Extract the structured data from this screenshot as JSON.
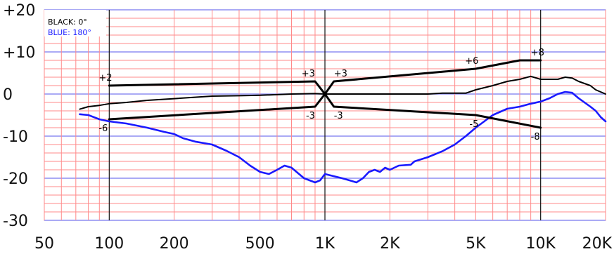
{
  "chart_data": {
    "type": "line",
    "x_scale": "log",
    "xlim": [
      50,
      20000
    ],
    "ylim": [
      -30,
      20
    ],
    "y_ticks": [
      "+20",
      "+10",
      "0",
      "-10",
      "-20",
      "-30"
    ],
    "x_ticks": [
      {
        "label": "50",
        "value": 50
      },
      {
        "label": "100",
        "value": 100
      },
      {
        "label": "200",
        "value": 200
      },
      {
        "label": "500",
        "value": 500
      },
      {
        "label": "1K",
        "value": 1000
      },
      {
        "label": "2K",
        "value": 2000
      },
      {
        "label": "5K",
        "value": 5000
      },
      {
        "label": "10K",
        "value": 10000
      },
      {
        "label": "20K",
        "value": 20000
      }
    ],
    "grid": true,
    "legend": {
      "position": "top-left",
      "entries": [
        {
          "label": "BLACK",
          "value": "0°",
          "color": "#000000"
        },
        {
          "label": "BLUE",
          "value": "180°",
          "color": "#1a1aff"
        }
      ]
    },
    "series": [
      {
        "name": "BLACK",
        "color": "#000000",
        "points": [
          [
            73,
            -3.6
          ],
          [
            80,
            -3
          ],
          [
            90,
            -2.7
          ],
          [
            100,
            -2.3
          ],
          [
            120,
            -2
          ],
          [
            150,
            -1.5
          ],
          [
            200,
            -1.1
          ],
          [
            300,
            -0.5
          ],
          [
            400,
            -0.4
          ],
          [
            500,
            -0.3
          ],
          [
            700,
            0
          ],
          [
            900,
            0.1
          ],
          [
            1000,
            0
          ],
          [
            1200,
            0
          ],
          [
            2000,
            0
          ],
          [
            3000,
            0
          ],
          [
            3500,
            0.2
          ],
          [
            4500,
            0.2
          ],
          [
            5000,
            1
          ],
          [
            6000,
            2
          ],
          [
            7000,
            3
          ],
          [
            8000,
            3.5
          ],
          [
            9000,
            4.2
          ],
          [
            10000,
            3.5
          ],
          [
            12000,
            3.5
          ],
          [
            13000,
            4
          ],
          [
            14000,
            3.8
          ],
          [
            15000,
            3
          ],
          [
            17000,
            2
          ],
          [
            18000,
            1
          ],
          [
            20000,
            0
          ]
        ]
      },
      {
        "name": "BLUE",
        "color": "#1a1aff",
        "points": [
          [
            73,
            -4.8
          ],
          [
            80,
            -5
          ],
          [
            90,
            -6
          ],
          [
            100,
            -6.5
          ],
          [
            120,
            -7
          ],
          [
            150,
            -8
          ],
          [
            180,
            -9
          ],
          [
            200,
            -9.5
          ],
          [
            220,
            -10.5
          ],
          [
            250,
            -11.3
          ],
          [
            300,
            -12
          ],
          [
            350,
            -13.5
          ],
          [
            400,
            -15
          ],
          [
            450,
            -17
          ],
          [
            500,
            -18.5
          ],
          [
            550,
            -19
          ],
          [
            600,
            -18
          ],
          [
            650,
            -17
          ],
          [
            700,
            -17.5
          ],
          [
            800,
            -20
          ],
          [
            900,
            -21
          ],
          [
            950,
            -20.5
          ],
          [
            1000,
            -19
          ],
          [
            1200,
            -20
          ],
          [
            1300,
            -20.5
          ],
          [
            1400,
            -21
          ],
          [
            1500,
            -20
          ],
          [
            1600,
            -18.5
          ],
          [
            1700,
            -18
          ],
          [
            1800,
            -18.5
          ],
          [
            1900,
            -17.5
          ],
          [
            2000,
            -18
          ],
          [
            2200,
            -17
          ],
          [
            2500,
            -16.8
          ],
          [
            2600,
            -16
          ],
          [
            3000,
            -15
          ],
          [
            3500,
            -13.6
          ],
          [
            4000,
            -12
          ],
          [
            4500,
            -10
          ],
          [
            5000,
            -8
          ],
          [
            6000,
            -5
          ],
          [
            7000,
            -3.5
          ],
          [
            8000,
            -3
          ],
          [
            9000,
            -2.3
          ],
          [
            10000,
            -1.8
          ],
          [
            11000,
            -1
          ],
          [
            12000,
            0
          ],
          [
            13000,
            0.5
          ],
          [
            14000,
            0.3
          ],
          [
            15000,
            -1
          ],
          [
            17000,
            -3
          ],
          [
            18000,
            -4
          ],
          [
            19000,
            -5.5
          ],
          [
            20000,
            -6.5
          ]
        ]
      },
      {
        "name": "",
        "color": "#000000",
        "points": [
          [
            100,
            2
          ],
          [
            900,
            3
          ],
          [
            1000,
            0
          ],
          [
            1100,
            3
          ],
          [
            5000,
            6
          ],
          [
            8000,
            8
          ],
          [
            10000,
            8
          ]
        ]
      },
      {
        "name": "",
        "color": "#000000",
        "points": [
          [
            100,
            -6
          ],
          [
            900,
            -3
          ],
          [
            1000,
            0
          ],
          [
            1100,
            -3
          ],
          [
            5000,
            -5
          ],
          [
            10000,
            -8
          ]
        ]
      }
    ],
    "annotations": [
      {
        "text": "+2",
        "x": 100,
        "y": 2
      },
      {
        "text": "-6",
        "x": 100,
        "y": -6
      },
      {
        "text": "+3",
        "x": 900,
        "y": 3
      },
      {
        "text": "+3",
        "x": 1100,
        "y": 3
      },
      {
        "text": "-3",
        "x": 900,
        "y": -3
      },
      {
        "text": "-3",
        "x": 1100,
        "y": -3
      },
      {
        "text": "+6",
        "x": 5000,
        "y": 6
      },
      {
        "text": "-5",
        "x": 5000,
        "y": -5
      },
      {
        "text": "+8",
        "x": 10000,
        "y": 8
      },
      {
        "text": "-8",
        "x": 10000,
        "y": -8
      }
    ]
  }
}
